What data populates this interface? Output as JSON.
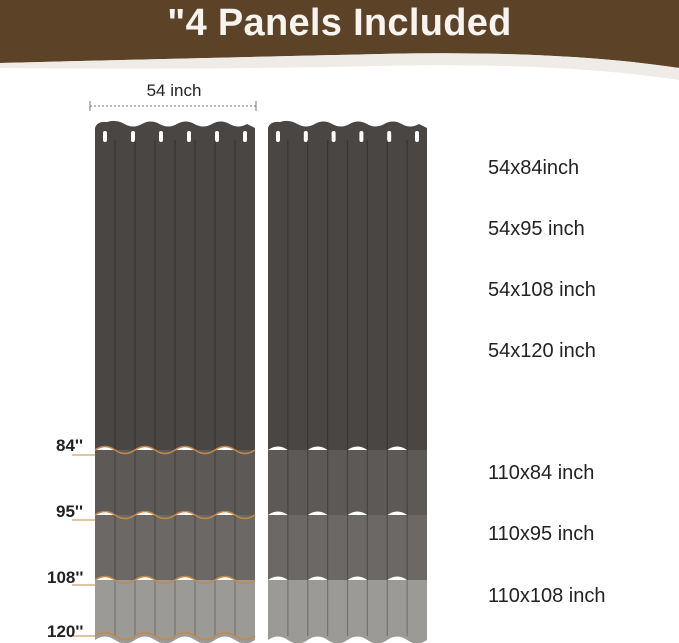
{
  "title": "\"4 Panels Included",
  "width_label": "54 inch",
  "sizes": [
    "54x84inch",
    "54x95 inch",
    "54x108 inch",
    "54x120 inch",
    "110x84 inch",
    "110x95 inch",
    "110x108 inch"
  ],
  "lengths": [
    "84''",
    "95''",
    "108''",
    "120''"
  ],
  "colors": {
    "banner": "#5c4328",
    "band_84": "#4a4643",
    "band_95": "#5c5956",
    "band_108": "#6b6865",
    "band_120": "#9c9a97",
    "trim": "#c08a4a"
  }
}
